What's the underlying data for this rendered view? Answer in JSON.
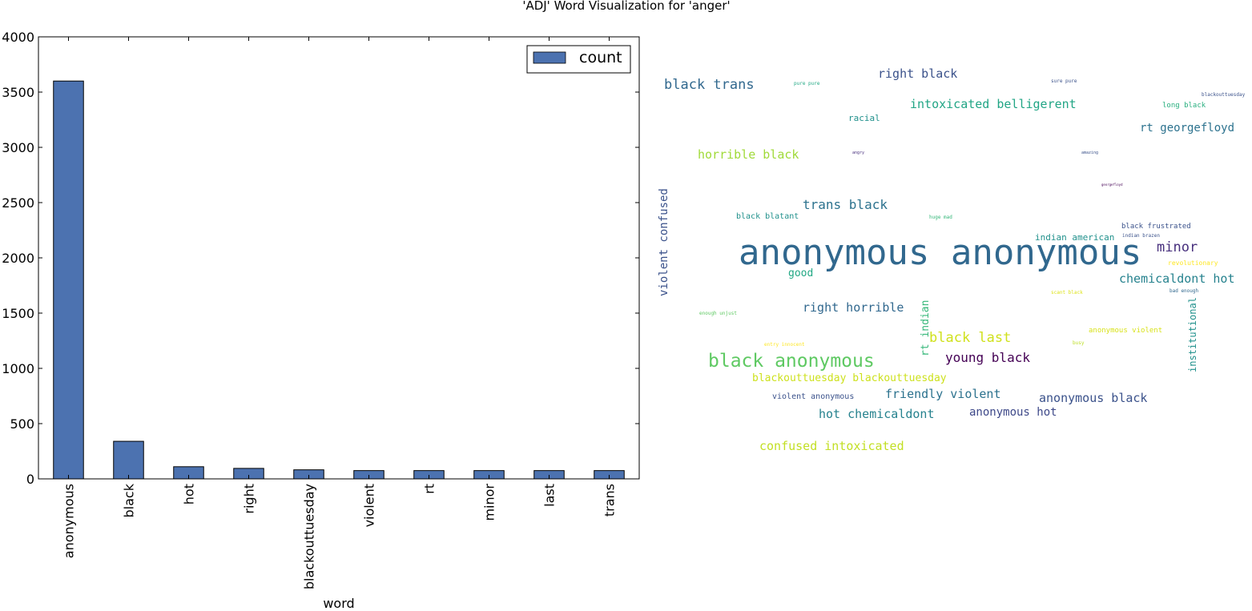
{
  "chart_data": [
    {
      "type": "bar",
      "title": "'ADJ' Word Visualization for 'anger'",
      "xlabel": "word",
      "ylabel": "",
      "categories": [
        "anonymous",
        "black",
        "hot",
        "right",
        "blackouttuesday",
        "violent",
        "rt",
        "minor",
        "last",
        "trans"
      ],
      "series": [
        {
          "name": "count",
          "values": [
            3600,
            340,
            110,
            95,
            82,
            75,
            75,
            75,
            75,
            75
          ],
          "color": "#4c72b0"
        }
      ],
      "ylim": [
        0,
        4000
      ],
      "yticks": [
        0,
        500,
        1000,
        1500,
        2000,
        2500,
        3000,
        3500,
        4000
      ],
      "legend": "top-right",
      "grid": false
    },
    {
      "type": "wordcloud",
      "colormap": "viridis",
      "words": [
        {
          "text": "anonymous anonymous",
          "color": "#31688e",
          "rotate": 0
        },
        {
          "text": "black anonymous",
          "color": "#5ec962",
          "rotate": 0
        },
        {
          "text": "black trans",
          "color": "#31688e",
          "rotate": 0
        },
        {
          "text": "right black",
          "color": "#3b528b",
          "rotate": 0
        },
        {
          "text": "intoxicated belligerent",
          "color": "#21a585",
          "rotate": 0
        },
        {
          "text": "rt georgefloyd",
          "color": "#2c728e",
          "rotate": 0
        },
        {
          "text": "horrible black",
          "color": "#a0da39",
          "rotate": 0
        },
        {
          "text": "racial",
          "color": "#21918c",
          "rotate": 0
        },
        {
          "text": "violent confused",
          "color": "#3b528b",
          "rotate": -90
        },
        {
          "text": "trans black",
          "color": "#2c728e",
          "rotate": 0
        },
        {
          "text": "black blatant",
          "color": "#21918c",
          "rotate": 0
        },
        {
          "text": "indian american",
          "color": "#21918c",
          "rotate": 0
        },
        {
          "text": "minor",
          "color": "#472f7d",
          "rotate": 0
        },
        {
          "text": "black frustrated",
          "color": "#3b528b",
          "rotate": 0
        },
        {
          "text": "good",
          "color": "#22a884",
          "rotate": 0
        },
        {
          "text": "chemicaldont hot",
          "color": "#26828e",
          "rotate": 0
        },
        {
          "text": "right horrible",
          "color": "#31688e",
          "rotate": 0
        },
        {
          "text": "rt indian",
          "color": "#35b779",
          "rotate": -90
        },
        {
          "text": "black last",
          "color": "#d0e11c",
          "rotate": 0
        },
        {
          "text": "young black",
          "color": "#440154",
          "rotate": 0
        },
        {
          "text": "institutional",
          "color": "#21918c",
          "rotate": -90
        },
        {
          "text": "anonymous violent",
          "color": "#d8e219",
          "rotate": 0
        },
        {
          "text": "blackouttuesday blackouttuesday",
          "color": "#cde11d",
          "rotate": 0
        },
        {
          "text": "violent anonymous",
          "color": "#3b528b",
          "rotate": 0
        },
        {
          "text": "friendly violent",
          "color": "#2c728e",
          "rotate": 0
        },
        {
          "text": "anonymous black",
          "color": "#3b528b",
          "rotate": 0
        },
        {
          "text": "hot chemicaldont",
          "color": "#26828e",
          "rotate": 0
        },
        {
          "text": "anonymous hot",
          "color": "#3e4989",
          "rotate": 0
        },
        {
          "text": "confused intoxicated",
          "color": "#c2df23",
          "rotate": 0
        },
        {
          "text": "long black",
          "color": "#29af7f",
          "rotate": 0
        },
        {
          "text": "pure pure",
          "color": "#22a884",
          "rotate": 0
        },
        {
          "text": "sure pure",
          "color": "#3b528b",
          "rotate": 0
        },
        {
          "text": "blackouttuesday",
          "color": "#3b528b",
          "rotate": 0
        },
        {
          "text": "angry",
          "color": "#472f7d",
          "rotate": 0
        },
        {
          "text": "amazing",
          "color": "#3b528b",
          "rotate": 0
        },
        {
          "text": "georgefloyd",
          "color": "#440154",
          "rotate": 0
        },
        {
          "text": "huge mad",
          "color": "#35b779",
          "rotate": 0
        },
        {
          "text": "indian brazen",
          "color": "#3b528b",
          "rotate": 0
        },
        {
          "text": "revolutionary",
          "color": "#fde725",
          "rotate": 0
        },
        {
          "text": "bad enough",
          "color": "#31688e",
          "rotate": 0
        },
        {
          "text": "scant black",
          "color": "#dde318",
          "rotate": 0
        },
        {
          "text": "enough unjust",
          "color": "#5ec962",
          "rotate": 0
        },
        {
          "text": "busy",
          "color": "#bddf26",
          "rotate": 0
        },
        {
          "text": "entry innocent",
          "color": "#fde725",
          "rotate": 0
        }
      ]
    }
  ]
}
